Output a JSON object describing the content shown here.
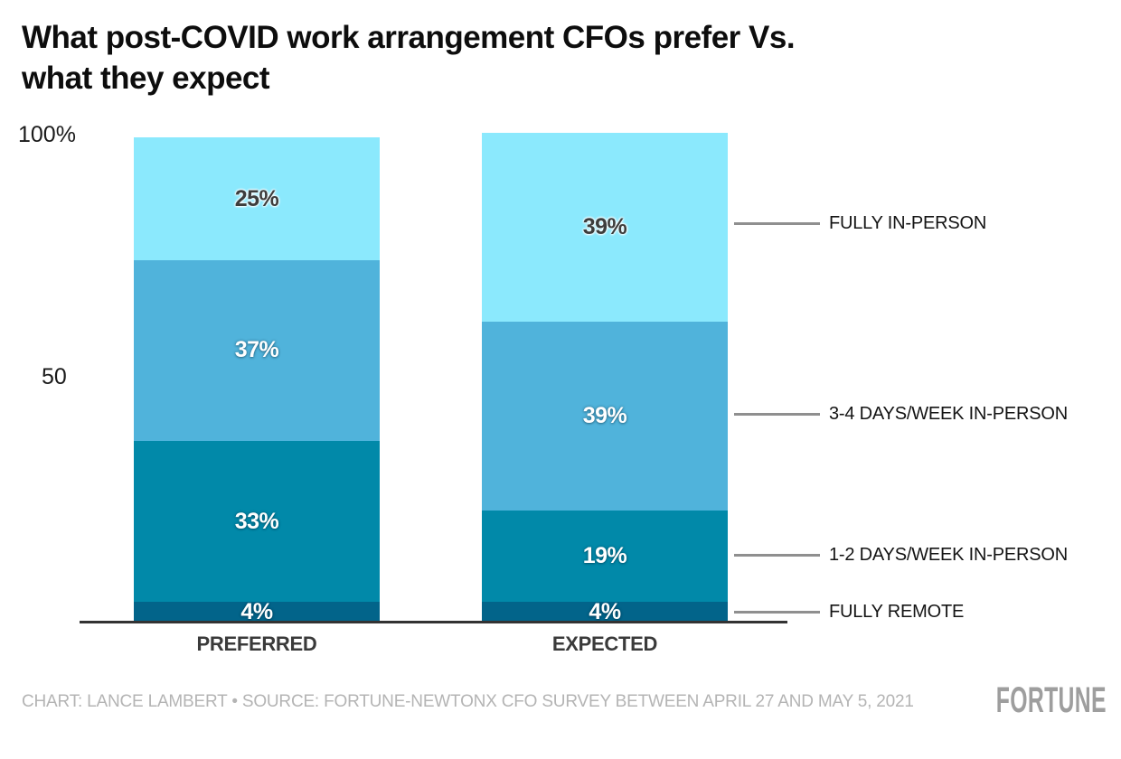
{
  "title": {
    "line1": "What post-COVID work arrangement CFOs prefer Vs.",
    "line2": "what they expect"
  },
  "y_axis": {
    "top_tick": "100%",
    "mid_tick": "50"
  },
  "chart_data": {
    "type": "bar",
    "stacked": true,
    "title": "What post-COVID work arrangement CFOs prefer Vs. what they expect",
    "categories": [
      "PREFERRED",
      "EXPECTED"
    ],
    "series": [
      {
        "name": "FULLY REMOTE",
        "values": [
          4,
          4
        ],
        "color": "#02648A",
        "label_style": "light"
      },
      {
        "name": "1-2 DAYS/WEEK IN-PERSON",
        "values": [
          33,
          19
        ],
        "color": "#0189A9",
        "label_style": "light"
      },
      {
        "name": "3-4 DAYS/WEEK IN-PERSON",
        "values": [
          37,
          39
        ],
        "color": "#50B3DB",
        "label_style": "light"
      },
      {
        "name": "FULLY IN-PERSON",
        "values": [
          25,
          39
        ],
        "color": "#8BE9FD",
        "label_style": "dark"
      }
    ],
    "ylim": [
      0,
      100
    ],
    "yticks": [
      "100%",
      "50"
    ],
    "value_suffix": "%",
    "grid": false,
    "legend_position": "right-leader-lines"
  },
  "colors": {
    "axis": "#333333",
    "leader_line": "#8f8f8f",
    "category_label": "#3a3a3a",
    "footer_text": "#b4b4b4",
    "logo": "#9e9e9e"
  },
  "footer": {
    "credit": "CHART: LANCE LAMBERT • SOURCE: FORTUNE-NEWTONX CFO SURVEY BETWEEN APRIL 27 AND MAY 5, 2021",
    "logo": "FORTUNE"
  }
}
